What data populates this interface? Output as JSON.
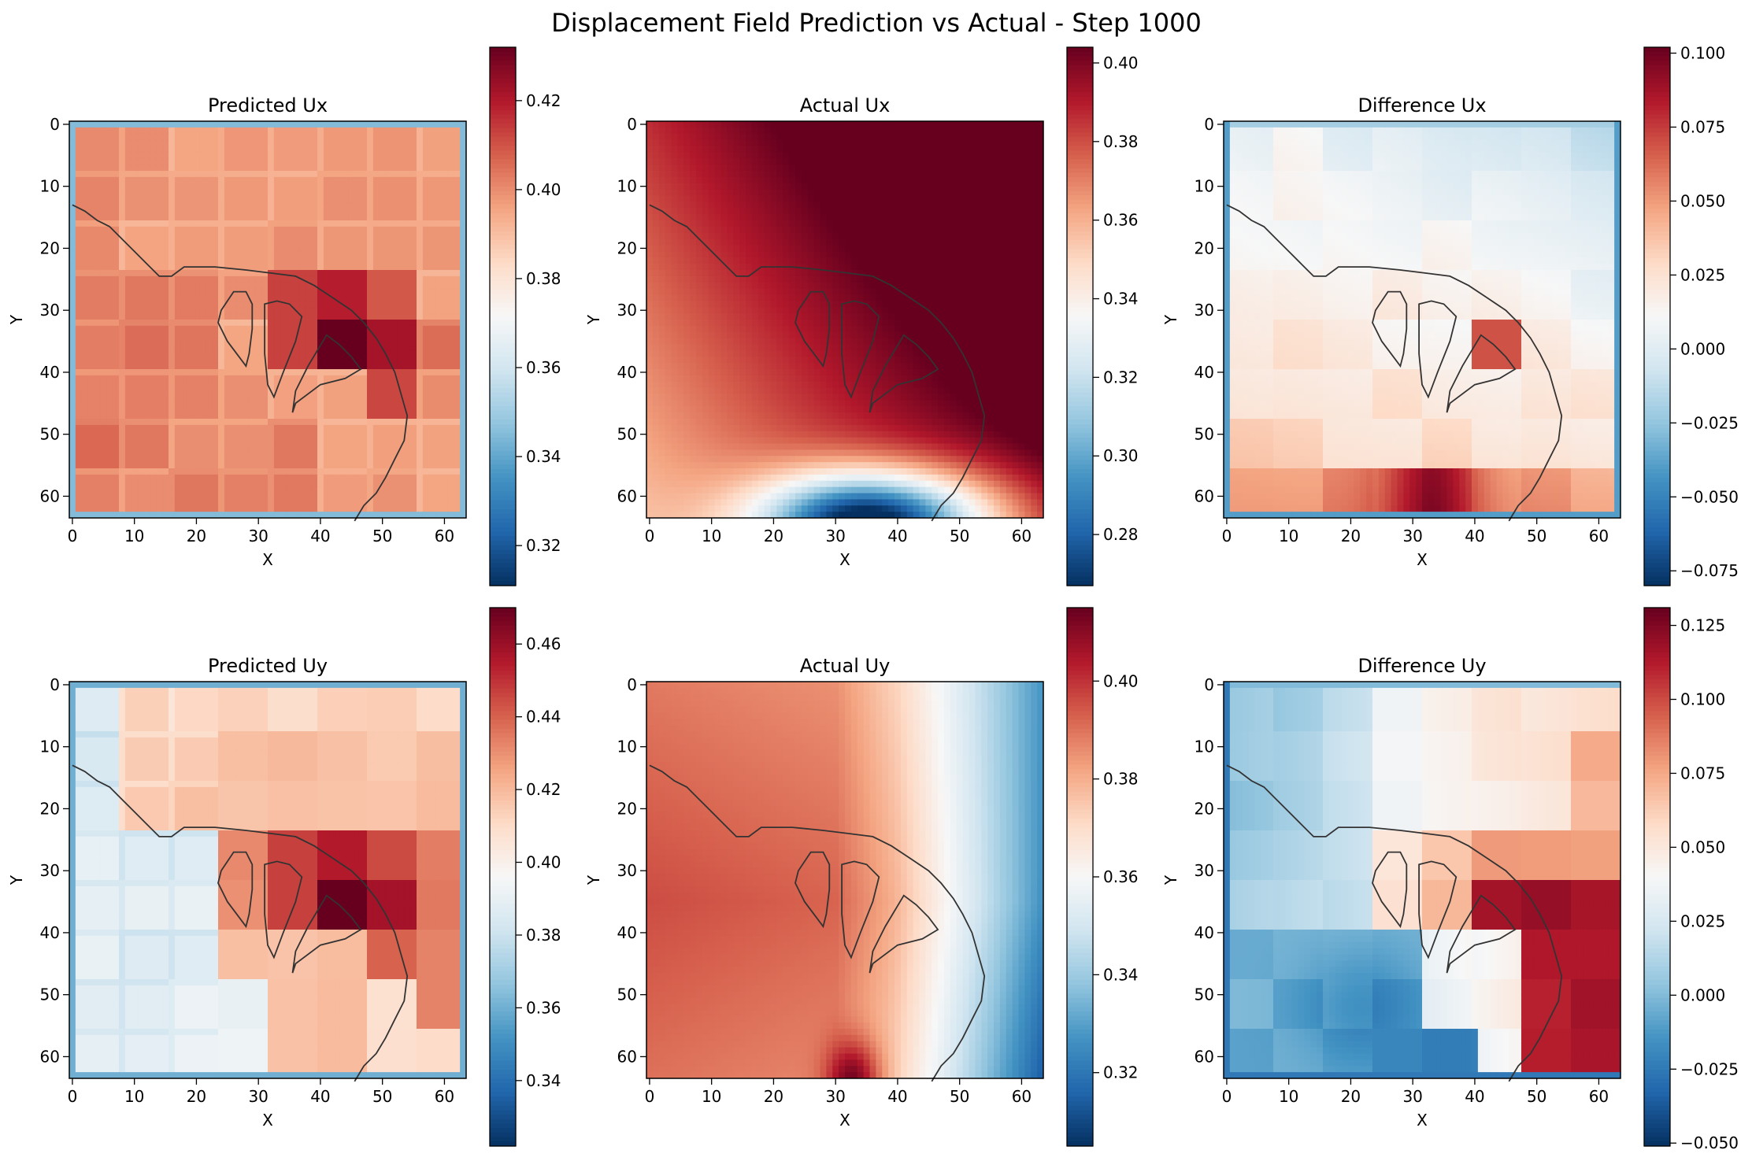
{
  "figure": {
    "title": "Displacement Field Prediction vs Actual - Step 1000"
  },
  "colors": {
    "colormap_stops": [
      "#053061",
      "#2166ac",
      "#4393c3",
      "#92c5de",
      "#d1e5f0",
      "#f7f7f7",
      "#fddbc7",
      "#f4a582",
      "#d6604d",
      "#b2182b",
      "#67001f"
    ],
    "axis": "#000000",
    "contour": "#333333"
  },
  "chart_data": [
    {
      "type": "heatmap",
      "id": "pred_ux",
      "title": "Predicted Ux",
      "xlabel": "X",
      "ylabel": "Y",
      "xticks": [
        0,
        10,
        20,
        30,
        40,
        50,
        60
      ],
      "yticks": [
        0,
        10,
        20,
        30,
        40,
        50,
        60
      ],
      "grid_size": 64,
      "field": "pred_ux",
      "vmin": 0.311,
      "vmax": 0.432,
      "colorbar_ticks": [
        0.32,
        0.34,
        0.36,
        0.38,
        0.4,
        0.42
      ],
      "colorbar_labels": [
        "0.32",
        "0.34",
        "0.36",
        "0.38",
        "0.40",
        "0.42"
      ]
    },
    {
      "type": "heatmap",
      "id": "actual_ux",
      "title": "Actual Ux",
      "xlabel": "X",
      "ylabel": "Y",
      "xticks": [
        0,
        10,
        20,
        30,
        40,
        50,
        60
      ],
      "yticks": [
        0,
        10,
        20,
        30,
        40,
        50,
        60
      ],
      "grid_size": 64,
      "field": "actual_ux",
      "vmin": 0.267,
      "vmax": 0.404,
      "colorbar_ticks": [
        0.28,
        0.3,
        0.32,
        0.34,
        0.36,
        0.38,
        0.4
      ],
      "colorbar_labels": [
        "0.28",
        "0.30",
        "0.32",
        "0.34",
        "0.36",
        "0.38",
        "0.40"
      ]
    },
    {
      "type": "heatmap",
      "id": "diff_ux",
      "title": "Difference Ux",
      "xlabel": "X",
      "ylabel": "Y",
      "xticks": [
        0,
        10,
        20,
        30,
        40,
        50,
        60
      ],
      "yticks": [
        0,
        10,
        20,
        30,
        40,
        50,
        60
      ],
      "grid_size": 64,
      "field": "diff_ux",
      "vmin": -0.08,
      "vmax": 0.102,
      "colorbar_ticks": [
        -0.075,
        -0.05,
        -0.025,
        0.0,
        0.025,
        0.05,
        0.075,
        0.1
      ],
      "colorbar_labels": [
        "−0.075",
        "−0.050",
        "−0.025",
        "0.000",
        "0.025",
        "0.050",
        "0.075",
        "0.100"
      ]
    },
    {
      "type": "heatmap",
      "id": "pred_uy",
      "title": "Predicted Uy",
      "xlabel": "X",
      "ylabel": "Y",
      "xticks": [
        0,
        10,
        20,
        30,
        40,
        50,
        60
      ],
      "yticks": [
        0,
        10,
        20,
        30,
        40,
        50,
        60
      ],
      "grid_size": 64,
      "field": "pred_uy",
      "vmin": 0.322,
      "vmax": 0.47,
      "colorbar_ticks": [
        0.34,
        0.36,
        0.38,
        0.4,
        0.42,
        0.44,
        0.46
      ],
      "colorbar_labels": [
        "0.34",
        "0.36",
        "0.38",
        "0.40",
        "0.42",
        "0.44",
        "0.46"
      ]
    },
    {
      "type": "heatmap",
      "id": "actual_uy",
      "title": "Actual Uy",
      "xlabel": "X",
      "ylabel": "Y",
      "xticks": [
        0,
        10,
        20,
        30,
        40,
        50,
        60
      ],
      "yticks": [
        0,
        10,
        20,
        30,
        40,
        50,
        60
      ],
      "grid_size": 64,
      "field": "actual_uy",
      "vmin": 0.305,
      "vmax": 0.415,
      "colorbar_ticks": [
        0.32,
        0.34,
        0.36,
        0.38,
        0.4
      ],
      "colorbar_labels": [
        "0.32",
        "0.34",
        "0.36",
        "0.38",
        "0.40"
      ]
    },
    {
      "type": "heatmap",
      "id": "diff_uy",
      "title": "Difference Uy",
      "xlabel": "X",
      "ylabel": "Y",
      "xticks": [
        0,
        10,
        20,
        30,
        40,
        50,
        60
      ],
      "yticks": [
        0,
        10,
        20,
        30,
        40,
        50,
        60
      ],
      "grid_size": 64,
      "field": "diff_uy",
      "vmin": -0.051,
      "vmax": 0.131,
      "colorbar_ticks": [
        -0.05,
        -0.025,
        0.0,
        0.025,
        0.05,
        0.075,
        0.1,
        0.125
      ],
      "colorbar_labels": [
        "−0.050",
        "−0.025",
        "0.000",
        "0.025",
        "0.050",
        "0.075",
        "0.100",
        "0.125"
      ]
    }
  ],
  "contours": {
    "description_units": "grid (x, y) data coordinates",
    "outer": [
      [
        0,
        13
      ],
      [
        2,
        14
      ],
      [
        4,
        15.5
      ],
      [
        6,
        16.5
      ],
      [
        8,
        18.5
      ],
      [
        10,
        20.5
      ],
      [
        12,
        22.5
      ],
      [
        14,
        24.5
      ],
      [
        16,
        24.5
      ],
      [
        18,
        23
      ],
      [
        23,
        23
      ],
      [
        28,
        23.5
      ],
      [
        32,
        24
      ],
      [
        36,
        24.5
      ],
      [
        39,
        26
      ],
      [
        42,
        28
      ],
      [
        45,
        30
      ],
      [
        47,
        32
      ],
      [
        49,
        34.5
      ],
      [
        50.5,
        37
      ],
      [
        52,
        40
      ],
      [
        53,
        43.5
      ],
      [
        54,
        47
      ],
      [
        53.5,
        51
      ],
      [
        52,
        54
      ],
      [
        50.5,
        57
      ],
      [
        49,
        59.5
      ],
      [
        47,
        61.5
      ],
      [
        45.5,
        64
      ]
    ],
    "islands": [
      [
        [
          24,
          30
        ],
        [
          26,
          27
        ],
        [
          28,
          27
        ],
        [
          29,
          29
        ],
        [
          29,
          33
        ],
        [
          28.5,
          37
        ],
        [
          28,
          39
        ],
        [
          26.5,
          37
        ],
        [
          25,
          35
        ],
        [
          23.5,
          32
        ],
        [
          24,
          30
        ]
      ],
      [
        [
          31,
          29
        ],
        [
          33,
          28.5
        ],
        [
          35,
          29
        ],
        [
          37,
          31
        ],
        [
          36,
          35
        ],
        [
          34,
          40
        ],
        [
          32.5,
          44
        ],
        [
          31.5,
          42
        ],
        [
          31,
          37
        ],
        [
          31,
          29
        ]
      ],
      [
        [
          41,
          34
        ],
        [
          43,
          35.5
        ],
        [
          45,
          37.5
        ],
        [
          46.5,
          39.5
        ],
        [
          44,
          41
        ],
        [
          40,
          42
        ],
        [
          36,
          45
        ],
        [
          35.5,
          46.5
        ],
        [
          36,
          43
        ],
        [
          38,
          39
        ],
        [
          41,
          34
        ]
      ]
    ]
  }
}
